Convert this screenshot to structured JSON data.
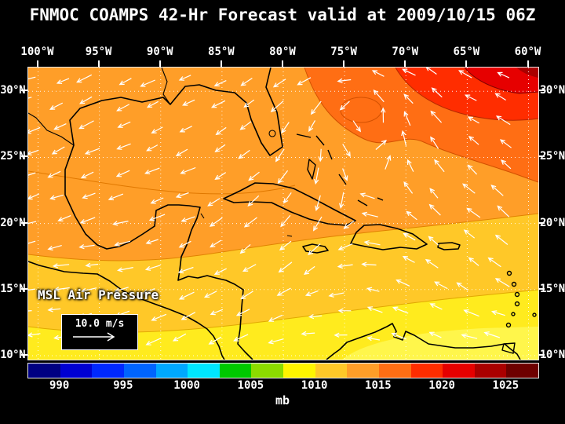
{
  "title": "FNMOC COAMPS 42-Hr Forecast valid at 2009/10/15 06Z",
  "axes": {
    "lon_labels": [
      "100°W",
      "95°W",
      "90°W",
      "85°W",
      "80°W",
      "75°W",
      "70°W",
      "65°W",
      "60°W"
    ],
    "lat_labels": [
      "30°N",
      "25°N",
      "20°N",
      "15°N",
      "10°N"
    ]
  },
  "map": {
    "field_label": "MSL Air Pressure",
    "wind_legend_label": "10.0 m/s"
  },
  "colorbar": {
    "unit": "mb",
    "min": 987.5,
    "max": 1027.5,
    "step": 2.5,
    "labels": [
      "990",
      "995",
      "1000",
      "1005",
      "1010",
      "1015",
      "1020",
      "1025"
    ],
    "colors": [
      "#000082",
      "#0000D2",
      "#0028FF",
      "#0064FF",
      "#00A8FF",
      "#00E6FF",
      "#00C800",
      "#8CDC00",
      "#FFF500",
      "#FFC828",
      "#FF9E28",
      "#FF6E14",
      "#FF2D00",
      "#E60000",
      "#AA0000",
      "#6E0000"
    ]
  },
  "chart_data": {
    "type": "heatmap",
    "title": "FNMOC COAMPS 42-Hr Forecast valid at 2009/10/15 06Z",
    "variable": "MSL Air Pressure",
    "unit": "mb",
    "model": "FNMOC COAMPS",
    "forecast_hours": 42,
    "valid_time": "2009/10/15 06Z",
    "x_axis": {
      "label_type": "longitude",
      "ticks": [
        "100°W",
        "95°W",
        "90°W",
        "85°W",
        "80°W",
        "75°W",
        "70°W",
        "65°W",
        "60°W"
      ]
    },
    "y_axis": {
      "label_type": "latitude",
      "ticks": [
        "30°N",
        "25°N",
        "20°N",
        "15°N",
        "10°N"
      ]
    },
    "colorbar": {
      "tick_values": [
        990,
        995,
        1000,
        1005,
        1010,
        1015,
        1020,
        1025
      ],
      "unit": "mb",
      "bin_width_mb": 2.5,
      "range_mb": [
        987.5,
        1027.5
      ]
    },
    "field_estimates": [
      {
        "region": "Gulf of Mexico",
        "pressure_mb": 1013
      },
      {
        "region": "Western Caribbean",
        "pressure_mb": 1011
      },
      {
        "region": "Eastern Caribbean 10-15N band",
        "pressure_mb": 1009
      },
      {
        "region": "Subtropical Atlantic ridge (NE corner)",
        "pressure_mb": 1024
      },
      {
        "region": "Bahamas near 75W 25N",
        "pressure_mb": 1014
      }
    ],
    "wind": {
      "reference_vector": "10.0 m/s",
      "pattern": "easterly trade winds across the Caribbean; cyclonic turning near 76W/31N; ridge flow around Atlantic high in northeast corner"
    }
  }
}
